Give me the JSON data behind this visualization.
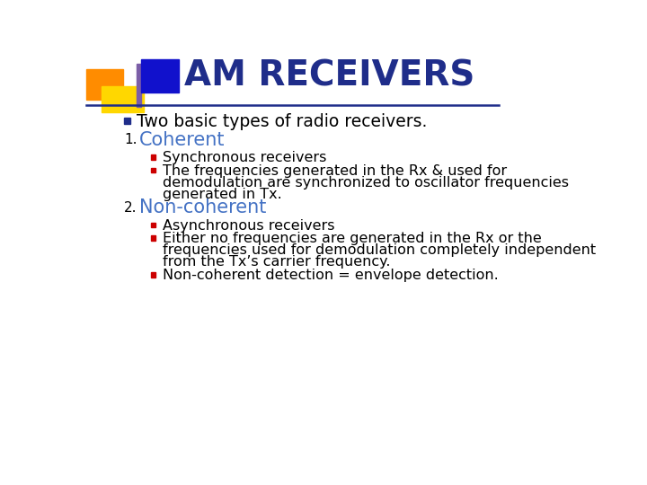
{
  "title": "AM RECEIVERS",
  "title_color": "#1F2D8A",
  "title_fontsize": 28,
  "bg_color": "#FFFFFF",
  "header_line_color": "#1F2D8A",
  "decoration_blue": "#1111CC",
  "decoration_orange": "#FF8C00",
  "decoration_yellow": "#FFD700",
  "decoration_purple": "#7B5EA7",
  "content_items": [
    {
      "type": "bullet",
      "level": 0,
      "bullet_color": "#1F2D8A",
      "text": "Two basic types of radio receivers.",
      "color": "#000000",
      "fontsize": 13.5
    },
    {
      "type": "numbered",
      "level": 0,
      "number": "1.",
      "text": "Coherent",
      "color": "#4472C4",
      "fontsize": 15
    },
    {
      "type": "bullet",
      "level": 1,
      "bullet_color": "#CC0000",
      "text": "Synchronous receivers",
      "color": "#000000",
      "fontsize": 11.5
    },
    {
      "type": "bullet_multiline",
      "level": 1,
      "bullet_color": "#CC0000",
      "lines": [
        "The frequencies generated in the Rx & used for",
        "demodulation are synchronized to oscillator frequencies",
        "generated in Tx."
      ],
      "color": "#000000",
      "fontsize": 11.5
    },
    {
      "type": "numbered",
      "level": 0,
      "number": "2.",
      "text": "Non-coherent",
      "color": "#4472C4",
      "fontsize": 15
    },
    {
      "type": "bullet",
      "level": 1,
      "bullet_color": "#CC0000",
      "text": "Asynchronous receivers",
      "color": "#000000",
      "fontsize": 11.5
    },
    {
      "type": "bullet_multiline",
      "level": 1,
      "bullet_color": "#CC0000",
      "lines": [
        "Either no frequencies are generated in the Rx or the",
        "frequencies used for demodulation completely independent",
        "from the Tx’s carrier frequency."
      ],
      "color": "#000000",
      "fontsize": 11.5
    },
    {
      "type": "bullet",
      "level": 1,
      "bullet_color": "#CC0000",
      "text": "Non-coherent detection = envelope detection.",
      "color": "#000000",
      "fontsize": 11.5
    }
  ]
}
